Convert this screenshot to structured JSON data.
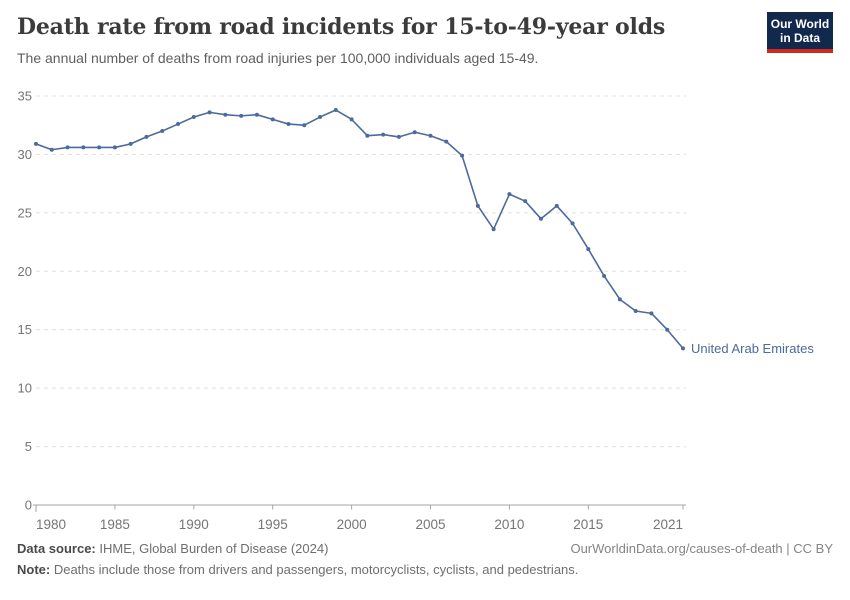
{
  "header": {
    "title": "Death rate from road incidents for 15-to-49-year olds",
    "subtitle": "The annual number of deaths from road injuries per 100,000 individuals aged 15-49.",
    "logo_line1": "Our World",
    "logo_line2": "in Data"
  },
  "chart_data": {
    "type": "line",
    "title": "Death rate from road incidents for 15-to-49-year olds",
    "xlabel": "",
    "ylabel": "",
    "xlim": [
      1980,
      2021
    ],
    "ylim": [
      0,
      35
    ],
    "x_ticks": [
      1980,
      1985,
      1990,
      1995,
      2000,
      2005,
      2010,
      2015,
      2021
    ],
    "y_ticks": [
      0,
      5,
      10,
      15,
      20,
      25,
      30,
      35
    ],
    "grid": "horizontal-dashed",
    "legend": "end-of-line-label",
    "x": [
      1980,
      1981,
      1982,
      1983,
      1984,
      1985,
      1986,
      1987,
      1988,
      1989,
      1990,
      1991,
      1992,
      1993,
      1994,
      1995,
      1996,
      1997,
      1998,
      1999,
      2000,
      2001,
      2002,
      2003,
      2004,
      2005,
      2006,
      2007,
      2008,
      2009,
      2010,
      2011,
      2012,
      2013,
      2014,
      2015,
      2016,
      2017,
      2018,
      2019,
      2020,
      2021
    ],
    "series": [
      {
        "name": "United Arab Emirates",
        "color": "#4c6a9c",
        "values": [
          30.9,
          30.4,
          30.6,
          30.6,
          30.6,
          30.6,
          30.9,
          31.5,
          32.0,
          32.6,
          33.2,
          33.6,
          33.4,
          33.3,
          33.4,
          33.0,
          32.6,
          32.5,
          33.2,
          33.8,
          33.0,
          31.6,
          31.7,
          31.5,
          31.9,
          31.6,
          31.1,
          29.9,
          25.6,
          23.6,
          26.6,
          26.0,
          24.5,
          25.6,
          24.1,
          21.9,
          19.6,
          17.6,
          16.6,
          16.4,
          15.0,
          13.4
        ]
      }
    ]
  },
  "colors": {
    "line": "#4c6a9c",
    "grid": "#e0e0e0",
    "axis": "#a6a6a6",
    "tick_label": "#757575",
    "logo_bg": "#12294e",
    "logo_bar": "#d0281c"
  },
  "footer": {
    "source_label": "Data source:",
    "source_text": " IHME, Global Burden of Disease (2024)",
    "link": "OurWorldinData.org/causes-of-death | CC BY",
    "note_label": "Note:",
    "note_text": " Deaths include those from drivers and passengers, motorcyclists, cyclists, and pedestrians."
  }
}
